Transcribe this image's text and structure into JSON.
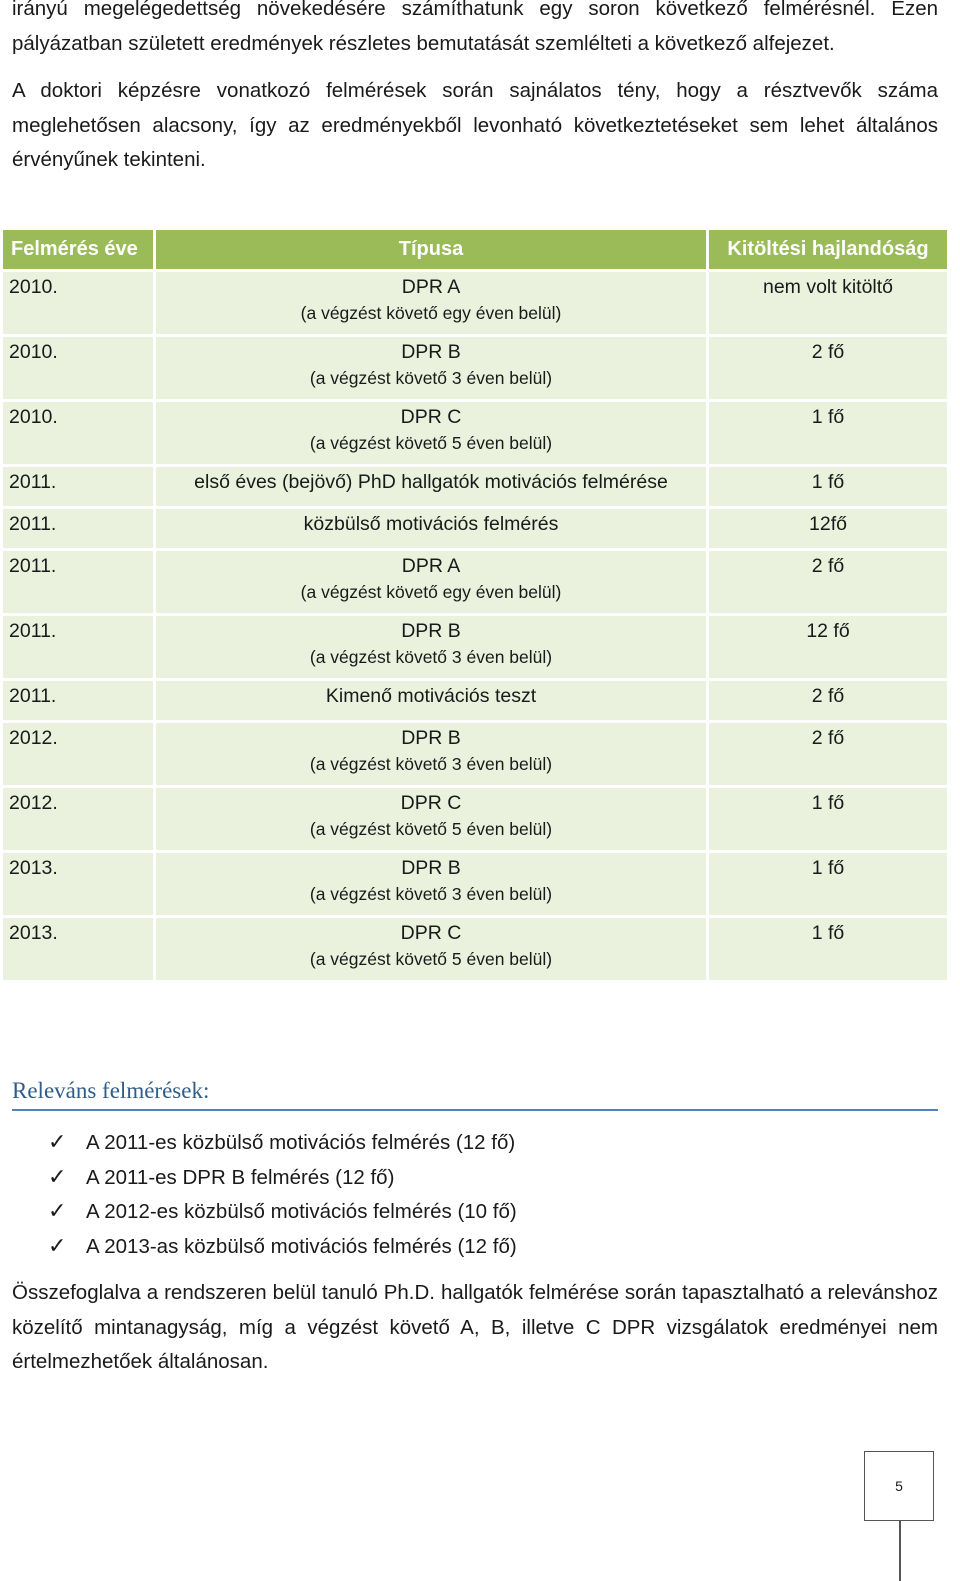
{
  "intro_paragraph": "irányú megelégedettség növekedésére számíthatunk egy soron következő felmérésnél. Ezen pályázatban született eredmények részletes bemutatását szemlélteti a következő alfejezet.",
  "doctoral_paragraph": "A doktori képzésre vonatkozó felmérések során sajnálatos tény, hogy a résztvevők száma meglehetősen alacsony, így az eredményekből levonható következtetéseket sem lehet általános érvényűnek tekinteni.",
  "table": {
    "headers": [
      "Felmérés éve",
      "Típusa",
      "Kitöltési hajlandóság"
    ],
    "rows": [
      {
        "year": "2010.",
        "type": "DPR A",
        "sub": "(a végzést követő egy éven belül)",
        "resp": "nem volt kitöltő"
      },
      {
        "year": "2010.",
        "type": "DPR B",
        "sub": "(a végzést követő 3 éven belül)",
        "resp": "2 fő"
      },
      {
        "year": "2010.",
        "type": "DPR C",
        "sub": "(a végzést követő 5 éven belül)",
        "resp": "1 fő"
      },
      {
        "year": "2011.",
        "type": "első éves (bejövő) PhD hallgatók motivációs felmérése",
        "sub": "",
        "resp": "1 fő"
      },
      {
        "year": "2011.",
        "type": "közbülső motivációs felmérés",
        "sub": "",
        "resp": "12fő"
      },
      {
        "year": "2011.",
        "type": "DPR A",
        "sub": "(a végzést követő egy éven belül)",
        "resp": "2 fő"
      },
      {
        "year": "2011.",
        "type": "DPR B",
        "sub": "(a végzést követő 3 éven belül)",
        "resp": "12 fő"
      },
      {
        "year": "2011.",
        "type": "Kimenő motivációs teszt",
        "sub": "",
        "resp": "2 fő"
      },
      {
        "year": "2012.",
        "type": "DPR B",
        "sub": "(a végzést követő 3 éven belül)",
        "resp": "2 fő"
      },
      {
        "year": "2012.",
        "type": "DPR C",
        "sub": "(a végzést követő 5 éven belül)",
        "resp": "1 fő"
      },
      {
        "year": "2013.",
        "type": "DPR B",
        "sub": "(a végzést követő 3 éven belül)",
        "resp": "1 fő"
      },
      {
        "year": "2013.",
        "type": "DPR C",
        "sub": "(a végzést követő 5 éven belül)",
        "resp": "1 fő"
      }
    ]
  },
  "relevant": {
    "heading": "Releváns felmérések:",
    "items": [
      "A 2011-es közbülső motivációs felmérés (12 fő)",
      "A 2011-es DPR B felmérés (12 fő)",
      "A 2012-es közbülső motivációs felmérés (10 fő)",
      "A 2013-as közbülső motivációs felmérés (12 fő)"
    ]
  },
  "summary_paragraph": "Összefoglalva a rendszeren belül tanuló Ph.D. hallgatók felmérése során tapasztalható a relevánshoz közelítő mintanagyság, míg a végzést követő A, B, illetve C DPR vizsgálatok eredményei nem értelmezhetőek általánosan.",
  "page_number": "5",
  "icons": {
    "check": "checkmark-icon"
  }
}
